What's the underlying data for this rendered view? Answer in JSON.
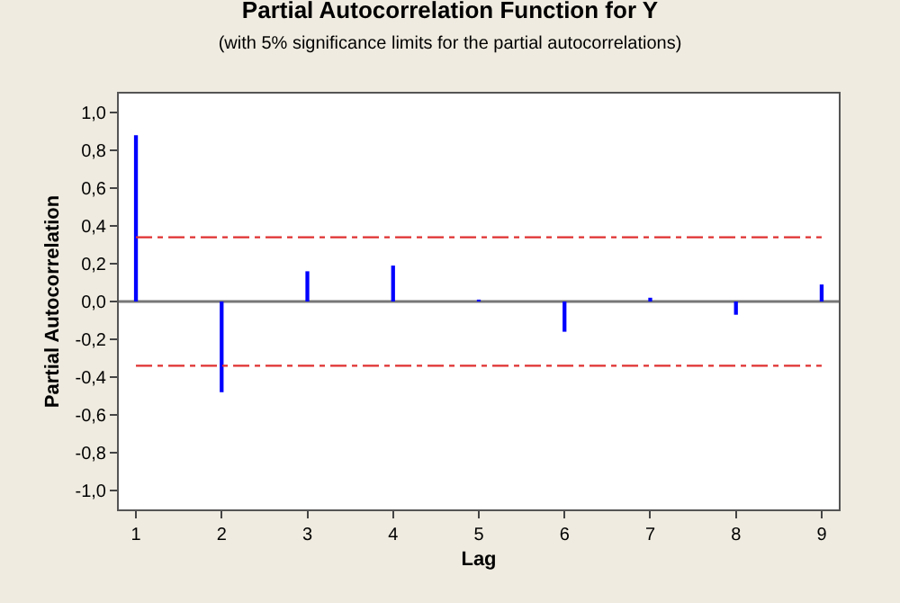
{
  "chart_data": {
    "type": "bar",
    "title": "Partial Autocorrelation Function for Y",
    "subtitle": "(with 5% significance limits for the partial autocorrelations)",
    "xlabel": "Lag",
    "ylabel": "Partial Autocorrelation",
    "x": [
      1,
      2,
      3,
      4,
      5,
      6,
      7,
      8,
      9
    ],
    "values": [
      0.88,
      -0.48,
      0.16,
      0.19,
      0.01,
      -0.16,
      0.02,
      -0.07,
      0.09
    ],
    "color": "#0000ff",
    "xlim": [
      0.8,
      9.2
    ],
    "xticks": [
      1,
      2,
      3,
      4,
      5,
      6,
      7,
      8,
      9
    ],
    "ylim": [
      -1.1,
      1.1
    ],
    "yticks": [
      {
        "value": -1,
        "label": "-1,0"
      },
      {
        "value": -0.8,
        "label": "-0,8"
      },
      {
        "value": -0.6,
        "label": "-0,6"
      },
      {
        "value": -0.4,
        "label": "-0,4"
      },
      {
        "value": -0.2,
        "label": "-0,2"
      },
      {
        "value": 0,
        "label": "0,0"
      },
      {
        "value": 0.2,
        "label": "0,2"
      },
      {
        "value": 0.4,
        "label": "0,4"
      },
      {
        "value": 0.6,
        "label": "0,6"
      },
      {
        "value": 0.8,
        "label": "0,8"
      },
      {
        "value": 1,
        "label": "1,0"
      }
    ],
    "ref_lines": [
      {
        "axis": "y",
        "value": 0,
        "color": "#777777",
        "line_style": "solid"
      },
      {
        "axis": "y",
        "value": 0.34,
        "color": "#e03030",
        "line_style": "dashdot"
      },
      {
        "axis": "y",
        "value": -0.34,
        "color": "#e03030",
        "line_style": "dashdot"
      }
    ],
    "grid": false,
    "legend": false
  }
}
